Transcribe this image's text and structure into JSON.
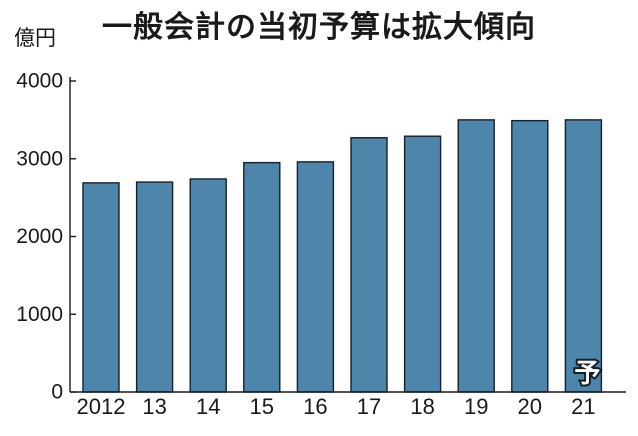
{
  "chart_data": {
    "type": "bar",
    "title": "一般会計の当初予算は拡大傾向",
    "ylabel": "億円",
    "categories": [
      "2012",
      "13",
      "14",
      "15",
      "16",
      "17",
      "18",
      "19",
      "20",
      "21"
    ],
    "values": [
      2690,
      2700,
      2740,
      2950,
      2960,
      3270,
      3290,
      3500,
      3490,
      3500
    ],
    "ylim": [
      0,
      4000
    ],
    "yticks": [
      0,
      1000,
      2000,
      3000,
      4000
    ],
    "grid": false,
    "bar_color": "#4e85ab",
    "annotations": [
      {
        "category": "21",
        "text": "予"
      }
    ]
  }
}
